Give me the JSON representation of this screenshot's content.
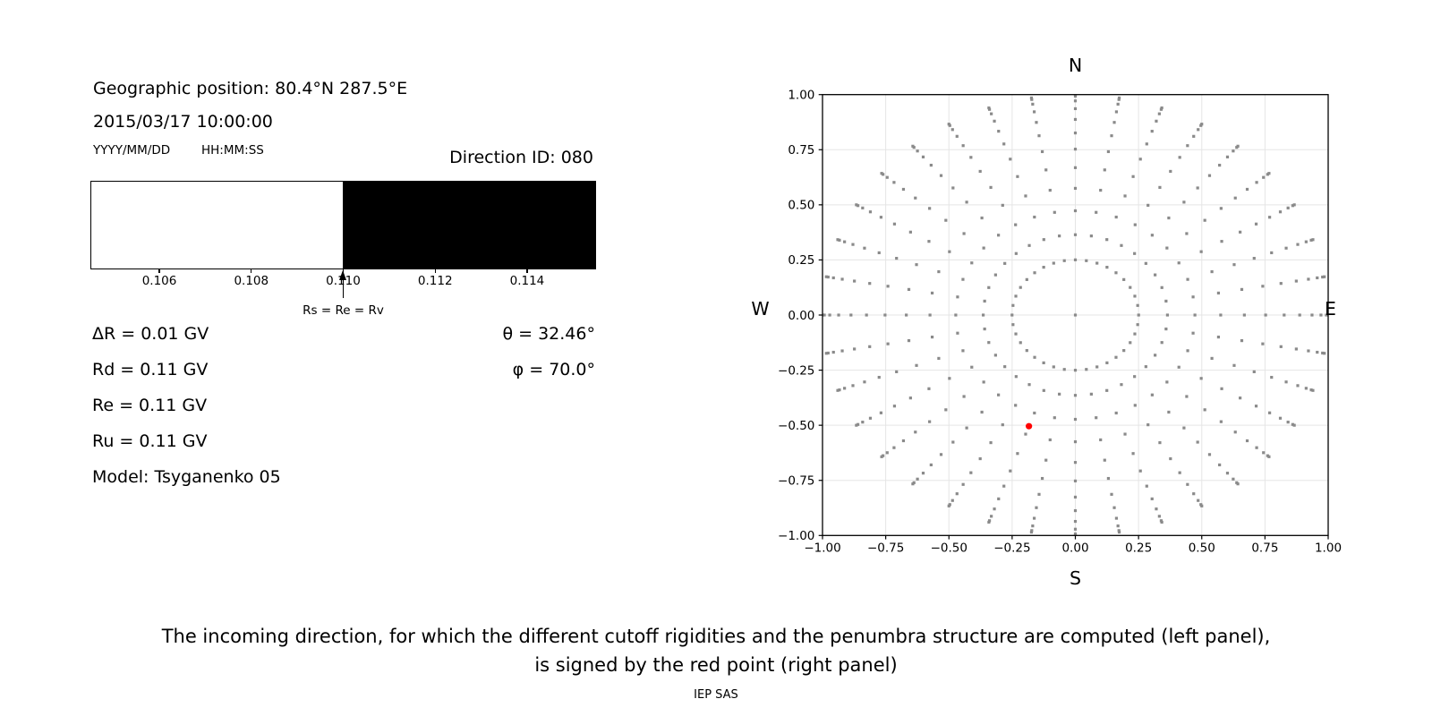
{
  "header": {
    "geo_position": "Geographic position: 80.4°N 287.5°E",
    "datetime": "2015/03/17 10:00:00",
    "date_format": "YYYY/MM/DD",
    "time_format": "HH:MM:SS",
    "direction_id": "Direction ID: 080"
  },
  "info": {
    "delta_r": "ΔR = 0.01 GV",
    "rd": "Rd = 0.11 GV",
    "re": "Re = 0.11 GV",
    "ru": "Ru = 0.11 GV",
    "model": "Model: Tsyganenko 05",
    "theta": "θ = 32.46°",
    "phi": "φ = 70.0°"
  },
  "caption": {
    "line1": "The incoming direction, for which the different cutoff rigidities and the penumbra structure are computed (left panel),",
    "line2": "is signed by the red point (right panel)",
    "credit": "IEP SAS"
  },
  "chart_data": [
    {
      "type": "bar",
      "name": "penumbra-structure",
      "xlim": [
        0.1045,
        0.1155
      ],
      "ticks": [
        0.106,
        0.108,
        0.11,
        0.112,
        0.114
      ],
      "tick_labels": [
        "0.106",
        "0.108",
        "0.110",
        "0.112",
        "0.114"
      ],
      "segments": [
        {
          "from": 0.1045,
          "to": 0.11,
          "color": "#ffffff"
        },
        {
          "from": 0.11,
          "to": 0.1155,
          "color": "#000000"
        }
      ],
      "annotation": {
        "value": 0.11,
        "label": "Rs = Re = Rv"
      }
    },
    {
      "type": "scatter",
      "name": "incoming-direction-map",
      "xlim": [
        -1,
        1
      ],
      "ylim": [
        -1,
        1
      ],
      "x_tick_labels": [
        "−1.00",
        "−0.75",
        "−0.50",
        "−0.25",
        "0.00",
        "0.25",
        "0.50",
        "0.75",
        "1.00"
      ],
      "y_tick_labels": [
        "1.00",
        "0.75",
        "0.50",
        "0.25",
        "0.00",
        "−0.25",
        "−0.50",
        "−0.75",
        "−1.00"
      ],
      "tick_values": [
        -1,
        -0.75,
        -0.5,
        -0.25,
        0,
        0.25,
        0.5,
        0.75,
        1
      ],
      "grid": true,
      "compass": {
        "north": "N",
        "south": "S",
        "west": "W",
        "east": "E"
      },
      "colors": {
        "grid": "#e5e5e5",
        "dots": "#8a8a8a",
        "red_point": "#ff0000",
        "spine": "#000000"
      },
      "direction_grid": {
        "azimuth_start_deg": 0,
        "azimuth_step_deg": 10,
        "azimuth_count": 36,
        "zenith_start_deg": 14.5,
        "zenith_end_deg": 90,
        "zenith_count": 12,
        "radius_mapping": "sin(zenith)",
        "center_point": true
      },
      "red_point": {
        "x": -0.1836,
        "y": -0.5043
      }
    }
  ]
}
